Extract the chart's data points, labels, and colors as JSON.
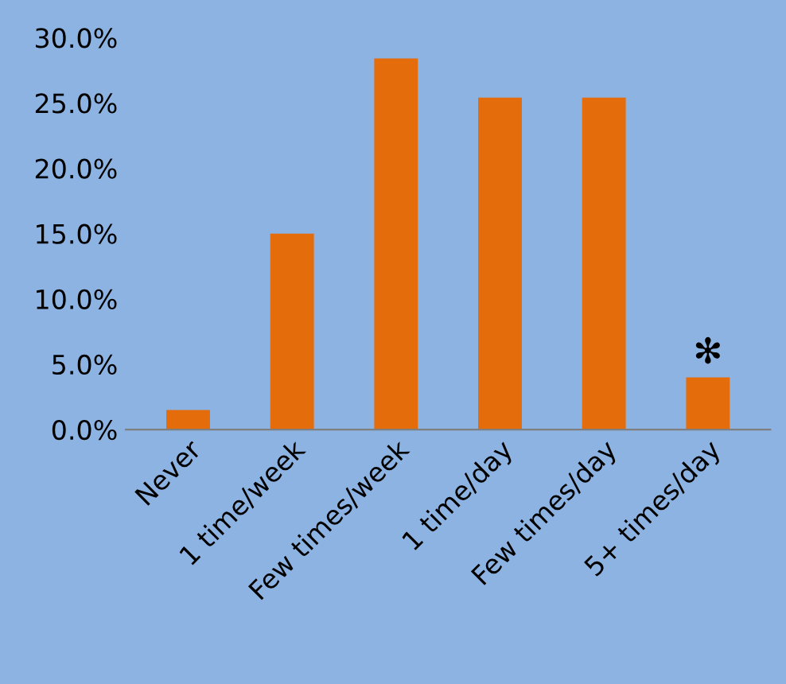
{
  "chart_data": {
    "type": "bar",
    "categories": [
      "Never",
      "1 time/week",
      "Few times/week",
      "1 time/day",
      "Few times/day",
      "5+ times/day"
    ],
    "values": [
      1.5,
      15.0,
      28.4,
      25.4,
      25.4,
      4.0
    ],
    "color": "#e46c0a",
    "ylim": [
      0,
      30
    ],
    "yticks": [
      {
        "value": 0,
        "label": "0.0%"
      },
      {
        "value": 5,
        "label": "5.0%"
      },
      {
        "value": 10,
        "label": "10.0%"
      },
      {
        "value": 15,
        "label": "15.0%"
      },
      {
        "value": 20,
        "label": "20.0%"
      },
      {
        "value": 25,
        "label": "25.0%"
      },
      {
        "value": 30,
        "label": "30.0%"
      }
    ],
    "grid": false,
    "legend": false,
    "annotations": [
      {
        "text": "✻",
        "x": "5+ times/day",
        "y": 4.0
      }
    ]
  }
}
